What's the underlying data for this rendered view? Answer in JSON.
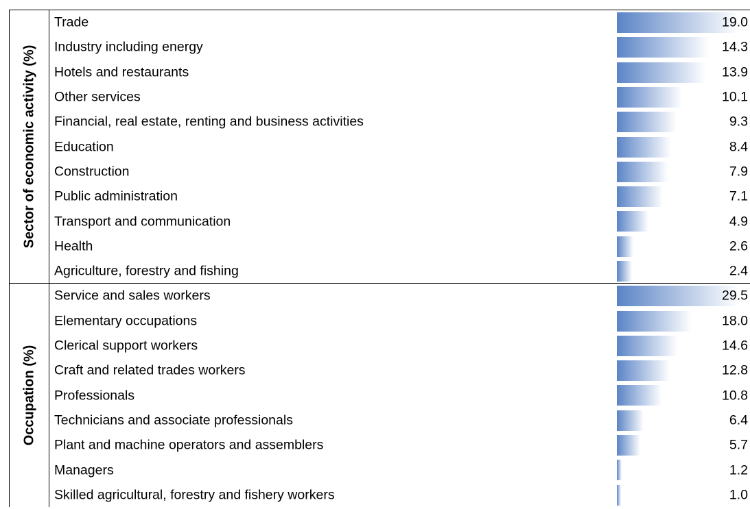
{
  "groups": [
    {
      "title": "Sector of economic activity (%)",
      "rows": [
        "Trade",
        "Industry including energy",
        "Hotels and restaurants",
        "Other services",
        "Financial, real estate, renting and business activities",
        "Education",
        "Construction",
        "Public administration",
        "Transport and communication",
        "Health",
        "Agriculture, forestry and fishing"
      ],
      "values": [
        19.0,
        14.3,
        13.9,
        10.1,
        9.3,
        8.4,
        7.9,
        7.1,
        4.9,
        2.6,
        2.4
      ],
      "value_labels": [
        "19.0",
        "14.3",
        "13.9",
        "10.1",
        "9.3",
        "8.4",
        "7.9",
        "7.1",
        "4.9",
        "2.6",
        "2.4"
      ]
    },
    {
      "title": "Occupation (%)",
      "rows": [
        "Service and sales workers",
        "Elementary occupations",
        "Clerical support workers",
        "Craft and related trades workers",
        "Professionals",
        "Technicians and associate professionals",
        "Plant and machine operators and assemblers",
        "Managers",
        "Skilled agricultural, forestry and fishery workers"
      ],
      "values": [
        29.5,
        18.0,
        14.6,
        12.8,
        10.8,
        6.4,
        5.7,
        1.2,
        1.0
      ],
      "value_labels": [
        "29.5",
        "18.0",
        "14.6",
        "12.8",
        "10.8",
        "6.4",
        "5.7",
        "1.2",
        "1.0"
      ]
    }
  ]
}
